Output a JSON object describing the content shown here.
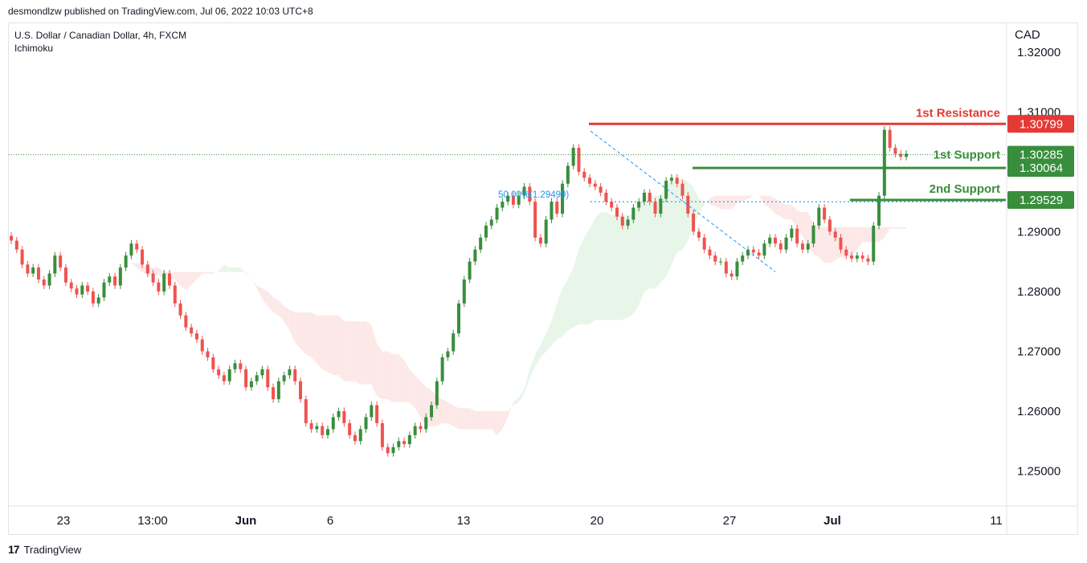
{
  "header": {
    "publisher_line": "desmondlzw published on TradingView.com, Jul 06, 2022 10:03 UTC+8"
  },
  "legend": {
    "symbol_line": "U.S. Dollar / Canadian Dollar, 4h, FXCM",
    "indicator": "Ichimoku"
  },
  "footer": {
    "brand": "TradingView",
    "brand_icon": "tradingview-logo-icon"
  },
  "colors": {
    "bull": "#388e3c",
    "bear": "#ef5350",
    "resistance": "#e53935",
    "support": "#388e3c",
    "cloud_bull": "#e8f5e9",
    "cloud_bear": "#fde8e8",
    "fib": "#2196f3"
  },
  "chart_data": {
    "type": "candlestick",
    "currency": "CAD",
    "y_ticks": [
      "1.32000",
      "1.31000",
      "1.29000",
      "1.28000",
      "1.27000",
      "1.26000",
      "1.25000"
    ],
    "x_ticks": [
      "23",
      "13:00",
      "Jun",
      "6",
      "13",
      "20",
      "27",
      "Jul",
      "11"
    ],
    "ylim": [
      1.2443,
      1.3248
    ],
    "levels": [
      {
        "label": "1st Resistance",
        "value": 1.30799,
        "price_label": "1.30799",
        "color": "#e53935"
      },
      {
        "label": "1st Support",
        "value": 1.30064,
        "price_label": "1.30064",
        "color": "#388e3c"
      },
      {
        "label": "2nd Support",
        "value": 1.29529,
        "price_label": "1.29529",
        "color": "#388e3c"
      }
    ],
    "current_price": {
      "value": 1.30285,
      "price_label": "1.30285"
    },
    "fib_label": "50.00%(1.29499)",
    "close_path": [
      1.2885,
      1.287,
      1.2845,
      1.283,
      1.284,
      1.282,
      1.281,
      1.283,
      1.286,
      1.284,
      1.2815,
      1.2805,
      1.2795,
      1.281,
      1.28,
      1.278,
      1.279,
      1.2815,
      1.2825,
      1.281,
      1.284,
      1.286,
      1.288,
      1.287,
      1.2845,
      1.283,
      1.2815,
      1.28,
      1.283,
      1.281,
      1.278,
      1.276,
      1.274,
      1.273,
      1.272,
      1.27,
      1.269,
      1.267,
      1.266,
      1.265,
      1.267,
      1.268,
      1.267,
      1.264,
      1.265,
      1.266,
      1.267,
      1.264,
      1.262,
      1.265,
      1.266,
      1.267,
      1.265,
      1.262,
      1.258,
      1.257,
      1.2575,
      1.256,
      1.257,
      1.259,
      1.26,
      1.258,
      1.256,
      1.255,
      1.257,
      1.259,
      1.261,
      1.258,
      1.254,
      1.253,
      1.254,
      1.255,
      1.2545,
      1.256,
      1.2575,
      1.257,
      1.259,
      1.261,
      1.265,
      1.269,
      1.27,
      1.273,
      1.278,
      1.282,
      1.285,
      1.287,
      1.289,
      1.291,
      1.292,
      1.294,
      1.295,
      1.296,
      1.2945,
      1.296,
      1.2975,
      1.295,
      1.289,
      1.288,
      1.292,
      1.295,
      1.293,
      1.298,
      1.301,
      1.304,
      1.3,
      1.299,
      1.298,
      1.2975,
      1.2965,
      1.295,
      1.294,
      1.2925,
      1.291,
      1.292,
      1.294,
      1.295,
      1.2965,
      1.295,
      1.293,
      1.2955,
      1.2985,
      1.299,
      1.298,
      1.296,
      1.293,
      1.29,
      1.289,
      1.287,
      1.286,
      1.285,
      1.285,
      1.283,
      1.2825,
      1.285,
      1.286,
      1.287,
      1.2865,
      1.286,
      1.288,
      1.289,
      1.288,
      1.287,
      1.289,
      1.2905,
      1.288,
      1.287,
      1.288,
      1.291,
      1.294,
      1.292,
      1.29,
      1.289,
      1.287,
      1.286,
      1.2855,
      1.286,
      1.2855,
      1.285,
      1.291,
      1.296,
      1.307,
      1.304,
      1.303,
      1.3025,
      1.303
    ]
  }
}
